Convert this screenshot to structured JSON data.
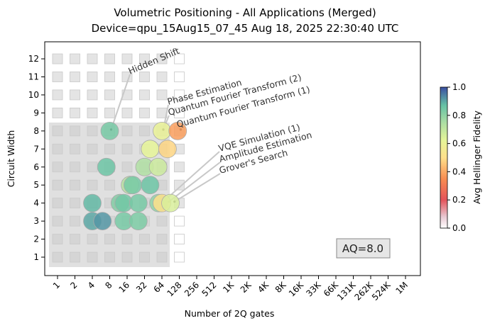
{
  "chart_data": {
    "type": "scatter",
    "title_line1": "Volumetric Positioning - All Applications (Merged)",
    "title_line2": "Device=qpu_15Aug15_07_45  Aug 18, 2025 22:30:40 UTC",
    "xlabel": "Number of 2Q gates",
    "ylabel": "Circuit Width",
    "x_scale": "log2",
    "x_ticks": [
      "1",
      "2",
      "4",
      "8",
      "16",
      "32",
      "64",
      "128",
      "256",
      "512",
      "1K",
      "2K",
      "4K",
      "8K",
      "16K",
      "33K",
      "66K",
      "131K",
      "262K",
      "524K",
      "1M"
    ],
    "y_ticks": [
      "1",
      "2",
      "3",
      "4",
      "5",
      "6",
      "7",
      "8",
      "9",
      "10",
      "11",
      "12"
    ],
    "ylim": [
      0,
      13
    ],
    "colorbar": {
      "label": "Avg Hellinger Fidelity",
      "ticks": [
        "0.0",
        "0.2",
        "0.4",
        "0.6",
        "0.8",
        "1.0"
      ],
      "range": [
        0,
        1
      ]
    },
    "aq_label": "AQ=8.0",
    "aq_value": 8,
    "annotations": [
      {
        "text": "Hidden Shift",
        "target_x": 8,
        "target_y": 8
      },
      {
        "text": "Phase Estimation",
        "target_x": 64,
        "target_y": 8
      },
      {
        "text": "Quantum Fourier Transform (2)",
        "target_x": 64,
        "target_y": 8
      },
      {
        "text": "Quantum Fourier Transform (1)",
        "target_x": 128,
        "target_y": 8
      },
      {
        "text": "VQE Simulation (1)",
        "target_x": 64,
        "target_y": 4
      },
      {
        "text": "Amplitude Estimation",
        "target_x": 80,
        "target_y": 4
      },
      {
        "text": "Grover's Search",
        "target_x": 100,
        "target_y": 4
      }
    ],
    "points": [
      {
        "x": 4,
        "y": 4,
        "fidelity": 0.88
      },
      {
        "x": 4,
        "y": 3,
        "fidelity": 0.9
      },
      {
        "x": 6,
        "y": 3,
        "fidelity": 0.92
      },
      {
        "x": 7,
        "y": 6,
        "fidelity": 0.86
      },
      {
        "x": 8,
        "y": 8,
        "fidelity": 0.84
      },
      {
        "x": 12,
        "y": 4,
        "fidelity": 0.82
      },
      {
        "x": 14,
        "y": 4,
        "fidelity": 0.85
      },
      {
        "x": 14,
        "y": 3,
        "fidelity": 0.84
      },
      {
        "x": 18,
        "y": 5,
        "fidelity": 0.72
      },
      {
        "x": 20,
        "y": 5,
        "fidelity": 0.84
      },
      {
        "x": 25,
        "y": 4,
        "fidelity": 0.84
      },
      {
        "x": 25,
        "y": 3,
        "fidelity": 0.83
      },
      {
        "x": 32,
        "y": 6,
        "fidelity": 0.74
      },
      {
        "x": 40,
        "y": 5,
        "fidelity": 0.86
      },
      {
        "x": 40,
        "y": 7,
        "fidelity": 0.62
      },
      {
        "x": 55,
        "y": 6,
        "fidelity": 0.68
      },
      {
        "x": 56,
        "y": 4,
        "fidelity": 0.8
      },
      {
        "x": 64,
        "y": 8,
        "fidelity": 0.6
      },
      {
        "x": 64,
        "y": 4,
        "fidelity": 0.5
      },
      {
        "x": 80,
        "y": 7,
        "fidelity": 0.48
      },
      {
        "x": 90,
        "y": 4,
        "fidelity": 0.65
      },
      {
        "x": 120,
        "y": 8,
        "fidelity": 0.38
      }
    ]
  }
}
